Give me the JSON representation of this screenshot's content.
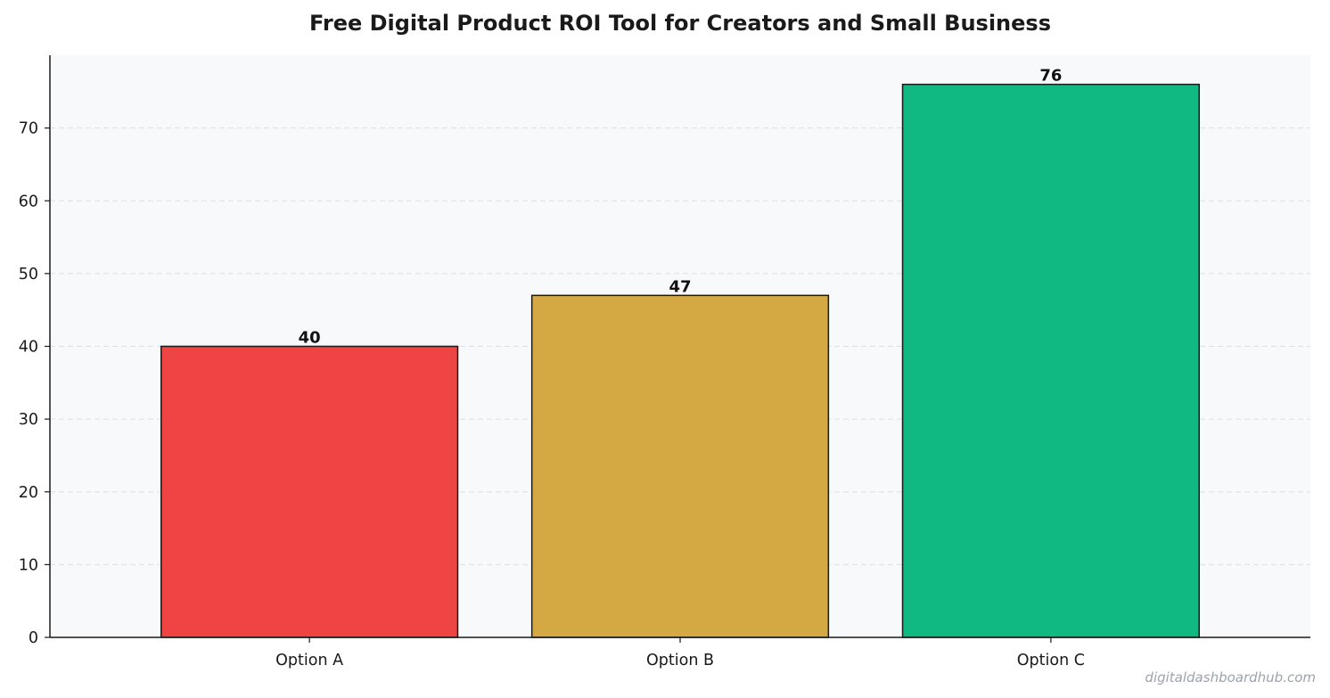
{
  "chart_data": {
    "type": "bar",
    "title": "Free Digital Product ROI Tool for Creators and Small Business",
    "categories": [
      "Option A",
      "Option B",
      "Option C"
    ],
    "values": [
      40,
      47,
      76
    ],
    "data_labels": [
      "40",
      "47",
      "76"
    ],
    "colors": [
      "#ef4444",
      "#d4a843",
      "#10b981"
    ],
    "xlabel": "",
    "ylabel": "",
    "ylim": [
      0,
      80
    ],
    "yticks": [
      0,
      10,
      20,
      30,
      40,
      50,
      60,
      70
    ],
    "grid": true,
    "grid_axis": "y",
    "plot_background": "#f8f9fb",
    "edge_color": "#1a1a1a"
  },
  "watermark": "digitaldashboardhub.com"
}
